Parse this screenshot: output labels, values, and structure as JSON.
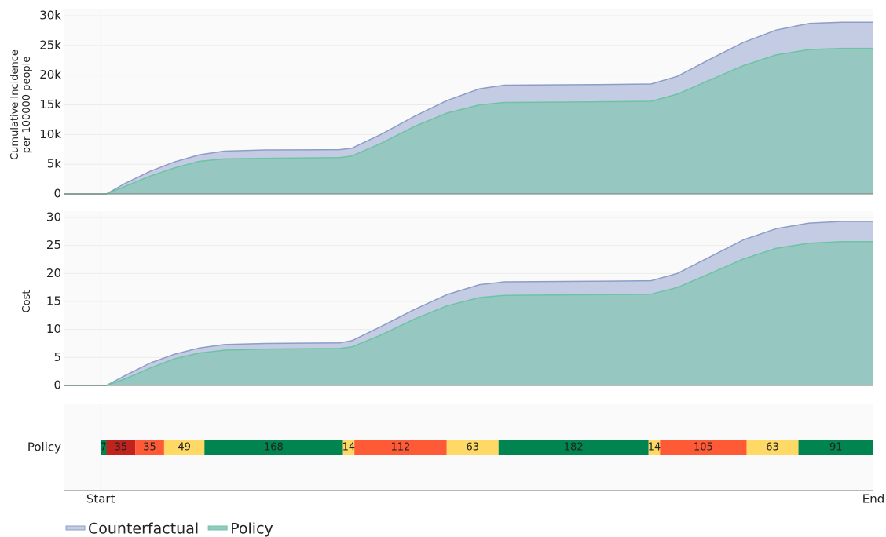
{
  "chart_data": [
    {
      "type": "area",
      "ylabel": [
        "Cumulative Incidence",
        "per 100000 people"
      ],
      "x": [
        -44,
        7,
        30,
        60,
        90,
        120,
        150,
        200,
        290,
        305,
        340,
        380,
        420,
        460,
        490,
        600,
        668,
        700,
        740,
        780,
        820,
        860,
        900,
        938
      ],
      "xlim": [
        -44,
        938
      ],
      "ylim": [
        0,
        30000
      ],
      "yticks": [
        0,
        {
          "value": 5000,
          "label": "5k"
        },
        {
          "value": 10000,
          "label": "10k"
        },
        {
          "value": 15000,
          "label": "15k"
        },
        {
          "value": 20000,
          "label": "20k"
        },
        {
          "value": 25000,
          "label": "25k"
        },
        {
          "value": 30000,
          "label": "30k"
        }
      ],
      "grid": true,
      "series": [
        {
          "name": "Counterfactual",
          "color": "#8d9dc6",
          "fill": "#c4cce4",
          "values": [
            0,
            0,
            1800,
            3800,
            5400,
            6600,
            7200,
            7400,
            7450,
            7700,
            10000,
            13000,
            15700,
            17700,
            18300,
            18400,
            18500,
            19800,
            22700,
            25500,
            27600,
            28700,
            28900,
            28900
          ]
        },
        {
          "name": "Policy",
          "color": "#6cc4a4",
          "fill": "#96c7c0",
          "values": [
            0,
            0,
            1300,
            3000,
            4400,
            5500,
            5900,
            6000,
            6100,
            6400,
            8500,
            11300,
            13600,
            15000,
            15400,
            15500,
            15600,
            16800,
            19200,
            21600,
            23400,
            24300,
            24500,
            24500
          ]
        }
      ]
    },
    {
      "type": "area",
      "ylabel": [
        "Cost"
      ],
      "x": [
        -44,
        7,
        30,
        60,
        90,
        120,
        150,
        200,
        290,
        305,
        340,
        380,
        420,
        460,
        490,
        600,
        668,
        700,
        740,
        780,
        820,
        860,
        900,
        938
      ],
      "xlim": [
        -44,
        938
      ],
      "ylim": [
        0,
        30
      ],
      "yticks": [
        0,
        5,
        10,
        15,
        20,
        25,
        30
      ],
      "grid": true,
      "series": [
        {
          "color": "#8d9dc6",
          "fill": "#c4cce4",
          "values": [
            0,
            0,
            1.8,
            4,
            5.6,
            6.7,
            7.3,
            7.5,
            7.6,
            8.0,
            10.5,
            13.5,
            16.2,
            18.0,
            18.5,
            18.6,
            18.7,
            20,
            23,
            26,
            28,
            29,
            29.3,
            29.3
          ]
        },
        {
          "color": "#6cc4a4",
          "fill": "#96c7c0",
          "values": [
            0,
            0,
            1.2,
            3.1,
            4.8,
            5.8,
            6.3,
            6.5,
            6.6,
            6.9,
            9.0,
            11.8,
            14.2,
            15.7,
            16.1,
            16.2,
            16.3,
            17.5,
            20,
            22.6,
            24.5,
            25.4,
            25.7,
            25.7
          ]
        }
      ]
    },
    {
      "type": "timeline",
      "category": "Policy",
      "xlim": [
        -44,
        938
      ],
      "xticks": [
        {
          "value": 0,
          "label": "Start"
        },
        {
          "value": 938,
          "label": "End"
        }
      ],
      "values": [
        7,
        35,
        35,
        49,
        168,
        14,
        112,
        63,
        182,
        14,
        105,
        63,
        91
      ],
      "colors": [
        "#008450",
        "#c0231d",
        "#ff5a36",
        "#ffd966",
        "#008450",
        "#ffd966",
        "#ff5a36",
        "#ffd966",
        "#008450",
        "#ffd966",
        "#ff5a36",
        "#ffd966",
        "#008450"
      ]
    }
  ]
}
